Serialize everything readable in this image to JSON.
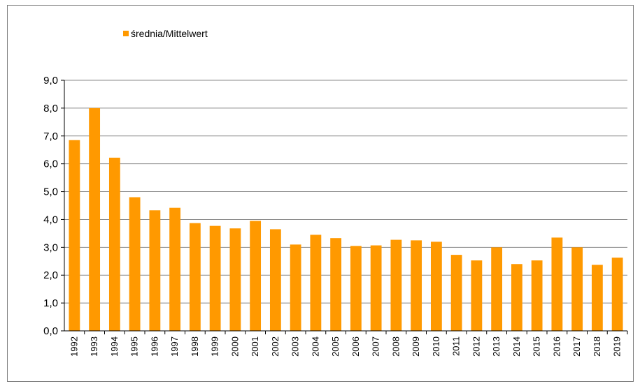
{
  "chart_data": {
    "type": "bar",
    "title": "",
    "xlabel": "",
    "ylabel": "",
    "ylim": [
      0,
      9
    ],
    "yticks": [
      "0,0",
      "1,0",
      "2,0",
      "3,0",
      "4,0",
      "5,0",
      "6,0",
      "7,0",
      "8,0",
      "9,0"
    ],
    "grid": true,
    "legend_position": "top-left",
    "bar_color": "#FF9900",
    "categories": [
      "1992",
      "1993",
      "1994",
      "1995",
      "1996",
      "1997",
      "1998",
      "1999",
      "2000",
      "2001",
      "2002",
      "2003",
      "2004",
      "2005",
      "2006",
      "2007",
      "2008",
      "2009",
      "2010",
      "2011",
      "2012",
      "2013",
      "2014",
      "2015",
      "2016",
      "2017",
      "2018",
      "2019"
    ],
    "series": [
      {
        "name": "średnia/Mittelwert",
        "values": [
          6.85,
          8.0,
          6.22,
          4.8,
          4.33,
          4.42,
          3.87,
          3.77,
          3.68,
          3.95,
          3.65,
          3.1,
          3.45,
          3.33,
          3.05,
          3.07,
          3.27,
          3.25,
          3.2,
          2.73,
          2.53,
          3.0,
          2.4,
          2.53,
          3.35,
          3.0,
          2.37,
          2.63
        ]
      }
    ]
  }
}
